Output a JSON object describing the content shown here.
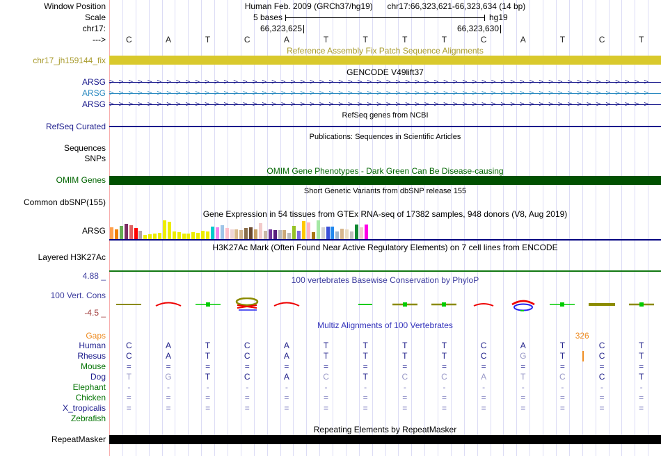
{
  "colors": {
    "navy": "#1A1A8C",
    "letter_navy": "#22228B",
    "letter_faded": "#9A9AC8",
    "mark_plain": "#4A4AA8",
    "mark_faded": "#9090C8",
    "gencode_blue": "#2B8AC0",
    "olive": "#A89B2D",
    "fix_bar": "#D9C92C",
    "omim_green": "#005000",
    "omim_title_green": "#006400",
    "label_green": "#007200",
    "phylop_blue": "#3B3B9E",
    "multiz_blue": "#3333BB",
    "orange": "#EE8C22",
    "maroon": "#A03A3A",
    "seq_black": "#222222",
    "baseline_navy": "#000080",
    "h3k_green": "#117711",
    "repeat_black": "#000000",
    "glyph_olive": "#8B8B00",
    "glyph_red": "#EE0000",
    "glyph_green": "#00CC00",
    "glyph_blue": "#2222EE"
  },
  "header": {
    "left_labels": [
      "Window Position",
      "Scale",
      "chr17:",
      "--->"
    ],
    "assembly_line": "Human Feb. 2009 (GRCh37/hg19)",
    "position_line": "chr17:66,323,621-66,323,634 (14 bp)",
    "scale_label": "5 bases",
    "assembly_tag": "hg19",
    "coord_left": "66,323,625",
    "coord_right": "66,323,630"
  },
  "sequence": {
    "bases": [
      "C",
      "A",
      "T",
      "C",
      "A",
      "T",
      "T",
      "T",
      "T",
      "C",
      "A",
      "T",
      "C",
      "T"
    ]
  },
  "sections": {
    "fix_patch": {
      "title": "Reference Assembly Fix Patch Sequence Alignments",
      "label": "chr17_jh159144_fix"
    },
    "gencode": {
      "title": "GENCODE V49lift37",
      "genes": [
        {
          "label": "ARSG",
          "color_key": "navy"
        },
        {
          "label": "ARSG",
          "color_key": "gencode_blue"
        },
        {
          "label": "ARSG",
          "color_key": "navy"
        }
      ]
    },
    "refseq": {
      "title": "RefSeq genes from NCBI",
      "label": "RefSeq Curated"
    },
    "publications": {
      "title": "Publications: Sequences in Scientific Articles",
      "labels": [
        "Sequences",
        "SNPs"
      ]
    },
    "omim": {
      "title": "OMIM Gene Phenotypes - Dark Green Can Be Disease-causing",
      "label": "OMIM Genes"
    },
    "dbsnp": {
      "title": "Short Genetic Variants from dbSNP release 155",
      "label": "Common dbSNP(155)"
    },
    "gtex": {
      "title": "Gene Expression in 54 tissues from GTEx RNA-seq of 17382 samples, 948 donors (V8, Aug 2019)",
      "label": "ARSG",
      "bars": [
        [
          "#FFA04D",
          0.55
        ],
        [
          "#F08000",
          0.48
        ],
        [
          "#66AD56",
          0.62
        ],
        [
          "#7B2D65",
          0.72
        ],
        [
          "#E06060",
          0.66
        ],
        [
          "#FF0000",
          0.52
        ],
        [
          "#B5A3A3",
          0.4
        ],
        [
          "#EDED00",
          0.2
        ],
        [
          "#EDED00",
          0.24
        ],
        [
          "#EDED00",
          0.27
        ],
        [
          "#EDED00",
          0.3
        ],
        [
          "#EDED00",
          0.9
        ],
        [
          "#EDED00",
          0.84
        ],
        [
          "#EDED00",
          0.36
        ],
        [
          "#EDED00",
          0.32
        ],
        [
          "#EDED00",
          0.28
        ],
        [
          "#EDED00",
          0.26
        ],
        [
          "#EDED00",
          0.34
        ],
        [
          "#EDED00",
          0.3
        ],
        [
          "#EDED00",
          0.4
        ],
        [
          "#EDED00",
          0.35
        ],
        [
          "#00CCCC",
          0.6
        ],
        [
          "#EE82EE",
          0.58
        ],
        [
          "#9FC5E8",
          0.66
        ],
        [
          "#FFC0CB",
          0.52
        ],
        [
          "#EFD5D5",
          0.48
        ],
        [
          "#D9B98C",
          0.45
        ],
        [
          "#D2B48C",
          0.42
        ],
        [
          "#8A6E4B",
          0.52
        ],
        [
          "#6B4A2F",
          0.55
        ],
        [
          "#C8A165",
          0.48
        ],
        [
          "#F2CBCB",
          0.78
        ],
        [
          "#C9B8A8",
          0.4
        ],
        [
          "#70349A",
          0.48
        ],
        [
          "#581F7E",
          0.42
        ],
        [
          "#B9B9B9",
          0.44
        ],
        [
          "#CBA877",
          0.42
        ],
        [
          "#BDBDBD",
          0.3
        ],
        [
          "#96C226",
          0.64
        ],
        [
          "#7F6BE0",
          0.4
        ],
        [
          "#FFC800",
          0.85
        ],
        [
          "#FFB3C6",
          0.8
        ],
        [
          "#A87614",
          0.34
        ],
        [
          "#A5E8A5",
          0.9
        ],
        [
          "#D3D3D3",
          0.55
        ],
        [
          "#3A50D9",
          0.6
        ],
        [
          "#2288EE",
          0.6
        ],
        [
          "#9FB6CD",
          0.35
        ],
        [
          "#D8B78E",
          0.5
        ],
        [
          "#EBDDC3",
          0.45
        ],
        [
          "#BFBFBF",
          0.38
        ],
        [
          "#118833",
          0.7
        ],
        [
          "#F0CCCC",
          0.55
        ],
        [
          "#FF00E6",
          0.7
        ]
      ]
    },
    "h3k27ac": {
      "title": "H3K27Ac Mark (Often Found Near Active Regulatory Elements) on 7 cell lines from ENCODE",
      "label": "Layered H3K27Ac"
    },
    "phylop": {
      "title": "100 vertebrates Basewise Conservation by PhyloP",
      "label": "100 Vert. Cons",
      "max_label": "4.88 _",
      "min_label": "-4.5 _",
      "glyphs": [
        "olive-dash",
        "red-arc",
        "green-dash-dot",
        "olive-loop-red",
        "red-arc",
        "none",
        "green-dash",
        "olive-green-dash",
        "olive-green-dash",
        "red-arc-small",
        "red-blue-arcs",
        "green-dash-dot",
        "olive-dash-thick",
        "olive-green-dash"
      ]
    },
    "multiz": {
      "title": "Multiz Alignments of 100 Vertebrates",
      "insert": {
        "label": "326",
        "after_base": 12
      },
      "rows": [
        {
          "label": "Gaps",
          "label_color_key": "orange",
          "cells": []
        },
        {
          "label": "Human",
          "label_color_key": "navy",
          "cells": [
            "C",
            "A",
            "T",
            "C",
            "A",
            "T",
            "T",
            "T",
            "T",
            "C",
            "A",
            "T",
            "C",
            "T"
          ]
        },
        {
          "label": "Rhesus",
          "label_color_key": "navy",
          "cells": [
            "C",
            "A",
            "T",
            "C",
            "A",
            "T",
            "T",
            "T",
            "T",
            "C",
            "G*",
            "T",
            "C",
            "T"
          ]
        },
        {
          "label": "Mouse",
          "label_color_key": "label_green",
          "cells": [
            "=",
            "=",
            "=",
            "=",
            "=",
            "=",
            "=",
            "=",
            "=",
            "=",
            "=",
            "=",
            "=",
            "="
          ]
        },
        {
          "label": "Dog",
          "label_color_key": "navy",
          "cells": [
            "T*",
            "G*",
            "T",
            "C",
            "A",
            "C*",
            "T",
            "C*",
            "C*",
            "A*",
            "T*",
            "C*",
            "C",
            "T"
          ]
        },
        {
          "label": "Elephant",
          "label_color_key": "label_green",
          "cells": [
            "-*",
            "-*",
            "-*",
            "-*",
            "-*",
            "-*",
            "-*",
            "-*",
            "-*",
            "-*",
            "-*",
            "-*",
            "-*",
            "-*"
          ]
        },
        {
          "label": "Chicken",
          "label_color_key": "label_green",
          "cells": [
            "=*",
            "=*",
            "=*",
            "=*",
            "=*",
            "=*",
            "=*",
            "=*",
            "=*",
            "=*",
            "=*",
            "=*",
            "=*",
            "=*"
          ]
        },
        {
          "label": "X_tropicalis",
          "label_color_key": "navy",
          "cells": [
            "=",
            "=",
            "=",
            "=",
            "=",
            "=",
            "=",
            "=",
            "=",
            "=",
            "=",
            "=",
            "=",
            "="
          ]
        },
        {
          "label": "Zebrafish",
          "label_color_key": "label_green",
          "cells": []
        }
      ]
    },
    "repeatmasker": {
      "title": "Repeating Elements by RepeatMasker",
      "label": "RepeatMasker"
    }
  }
}
